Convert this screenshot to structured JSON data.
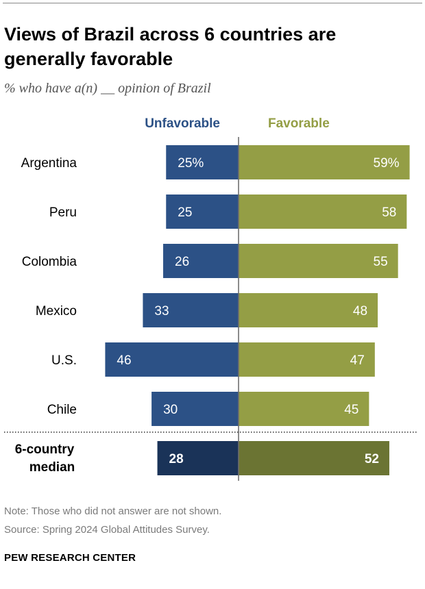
{
  "header": {
    "title": "Views of Brazil across 6 countries are generally favorable",
    "subtitle": "% who have a(n) __ opinion of Brazil"
  },
  "footer": {
    "note": "Note: Those who did not answer are not shown.",
    "source": "Source: Spring 2024 Global Attitudes Survey.",
    "brand": "PEW RESEARCH CENTER"
  },
  "colors": {
    "unfavorable": "#2c5186",
    "favorable": "#949e45",
    "unfavorable_median": "#1a3358",
    "favorable_median": "#6b7433"
  },
  "chart_data": {
    "type": "bar",
    "orientation": "horizontal-diverging",
    "categories": [
      "Argentina",
      "Peru",
      "Colombia",
      "Mexico",
      "U.S.",
      "Chile"
    ],
    "series": [
      {
        "name": "Unfavorable",
        "values": [
          25,
          25,
          26,
          33,
          46,
          30
        ],
        "labels": [
          "25%",
          "25",
          "26",
          "33",
          "46",
          "30"
        ]
      },
      {
        "name": "Favorable",
        "values": [
          59,
          58,
          55,
          48,
          47,
          45
        ],
        "labels": [
          "59%",
          "58",
          "55",
          "48",
          "47",
          "45"
        ]
      }
    ],
    "summary": {
      "label_line1": "6-country",
      "label_line2": "median",
      "unfavorable": 28,
      "favorable": 52
    }
  }
}
